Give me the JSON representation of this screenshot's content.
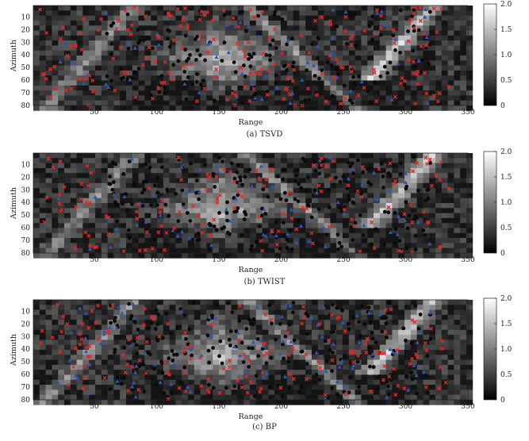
{
  "figure": {
    "x_axis_label": "Range",
    "y_axis_label": "Azimuth",
    "x_ticks": [
      50,
      100,
      150,
      200,
      250,
      300,
      350
    ],
    "y_ticks": [
      10,
      20,
      30,
      40,
      50,
      60,
      70,
      80
    ],
    "x_range": [
      1,
      350
    ],
    "y_range": [
      1,
      80
    ],
    "colorbar_ticks": [
      {
        "value": 0,
        "label": "0"
      },
      {
        "value": 0.5,
        "label": "0.5"
      },
      {
        "value": 1.0,
        "label": "1.0"
      },
      {
        "value": 1.5,
        "label": "1.5"
      },
      {
        "value": 2.0,
        "label": "2.0"
      }
    ],
    "colorbar_range": [
      0,
      2.0
    ],
    "colormap": "gray",
    "marker_colors": {
      "circle": "#0a0a0a",
      "triangle": "#2f55b4",
      "cross": "#e02828"
    }
  },
  "panels": [
    {
      "caption": "(a) TSVD",
      "seed": 11
    },
    {
      "caption": "(b) TWIST",
      "seed": 29
    },
    {
      "caption": "(c) BP",
      "seed": 47
    }
  ]
}
